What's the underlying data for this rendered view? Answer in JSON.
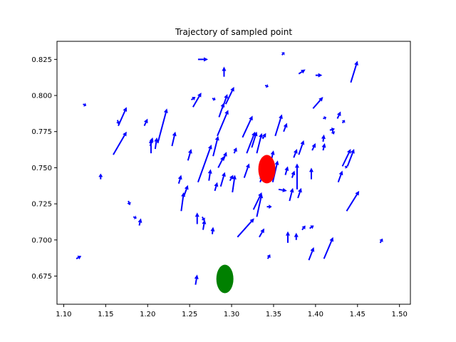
{
  "chart_data": {
    "type": "quiver",
    "title": "Trajectory of sampled point",
    "xlabel": "",
    "ylabel": "",
    "xlim": [
      1.092,
      1.513
    ],
    "ylim": [
      0.6555,
      0.8375
    ],
    "xticks": [
      "1.10",
      "1.15",
      "1.20",
      "1.25",
      "1.30",
      "1.35",
      "1.40",
      "1.45",
      "1.50"
    ],
    "xtick_values": [
      1.1,
      1.15,
      1.2,
      1.25,
      1.3,
      1.35,
      1.4,
      1.45,
      1.5
    ],
    "yticks": [
      "0.675",
      "0.700",
      "0.725",
      "0.750",
      "0.775",
      "0.800",
      "0.825"
    ],
    "ytick_values": [
      0.675,
      0.7,
      0.725,
      0.75,
      0.775,
      0.8,
      0.825
    ],
    "grid": false,
    "arrow_color": "#0000ff",
    "arrows": [
      {
        "x": 1.115,
        "y": 0.687,
        "dx": 0.006,
        "dy": 0.002
      },
      {
        "x": 1.123,
        "y": 0.794,
        "dx": 0.004,
        "dy": -0.001
      },
      {
        "x": 1.144,
        "y": 0.742,
        "dx": 0.0,
        "dy": 0.004
      },
      {
        "x": 1.159,
        "y": 0.759,
        "dx": 0.016,
        "dy": 0.016
      },
      {
        "x": 1.165,
        "y": 0.779,
        "dx": 0.01,
        "dy": 0.013
      },
      {
        "x": 1.164,
        "y": 0.783,
        "dx": 0.002,
        "dy": -0.003
      },
      {
        "x": 1.177,
        "y": 0.727,
        "dx": 0.002,
        "dy": -0.003
      },
      {
        "x": 1.183,
        "y": 0.716,
        "dx": 0.004,
        "dy": -0.001
      },
      {
        "x": 1.19,
        "y": 0.71,
        "dx": 0.002,
        "dy": 0.005
      },
      {
        "x": 1.196,
        "y": 0.779,
        "dx": 0.004,
        "dy": 0.005
      },
      {
        "x": 1.204,
        "y": 0.76,
        "dx": 0.0,
        "dy": 0.01
      },
      {
        "x": 1.203,
        "y": 0.765,
        "dx": 0.003,
        "dy": 0.006
      },
      {
        "x": 1.209,
        "y": 0.763,
        "dx": 0.002,
        "dy": 0.008
      },
      {
        "x": 1.212,
        "y": 0.767,
        "dx": 0.011,
        "dy": 0.024
      },
      {
        "x": 1.229,
        "y": 0.765,
        "dx": 0.004,
        "dy": 0.01
      },
      {
        "x": 1.237,
        "y": 0.739,
        "dx": 0.003,
        "dy": 0.006
      },
      {
        "x": 1.24,
        "y": 0.72,
        "dx": 0.003,
        "dy": 0.013
      },
      {
        "x": 1.243,
        "y": 0.73,
        "dx": 0.005,
        "dy": 0.008
      },
      {
        "x": 1.248,
        "y": 0.755,
        "dx": 0.004,
        "dy": 0.008
      },
      {
        "x": 1.252,
        "y": 0.797,
        "dx": 0.005,
        "dy": 0.002
      },
      {
        "x": 1.254,
        "y": 0.792,
        "dx": 0.01,
        "dy": 0.01
      },
      {
        "x": 1.257,
        "y": 0.669,
        "dx": 0.002,
        "dy": 0.007
      },
      {
        "x": 1.26,
        "y": 0.74,
        "dx": 0.016,
        "dy": 0.026
      },
      {
        "x": 1.259,
        "y": 0.711,
        "dx": 0.0,
        "dy": 0.008
      },
      {
        "x": 1.26,
        "y": 0.825,
        "dx": 0.012,
        "dy": 0.0
      },
      {
        "x": 1.265,
        "y": 0.716,
        "dx": 0.003,
        "dy": -0.003
      },
      {
        "x": 1.266,
        "y": 0.707,
        "dx": 0.002,
        "dy": 0.007
      },
      {
        "x": 1.273,
        "y": 0.741,
        "dx": 0.002,
        "dy": 0.008
      },
      {
        "x": 1.277,
        "y": 0.704,
        "dx": 0.001,
        "dy": 0.005
      },
      {
        "x": 1.28,
        "y": 0.734,
        "dx": 0.003,
        "dy": 0.006
      },
      {
        "x": 1.278,
        "y": 0.758,
        "dx": 0.006,
        "dy": 0.014
      },
      {
        "x": 1.277,
        "y": 0.798,
        "dx": 0.004,
        "dy": -0.001
      },
      {
        "x": 1.284,
        "y": 0.75,
        "dx": 0.007,
        "dy": 0.008
      },
      {
        "x": 1.283,
        "y": 0.772,
        "dx": 0.013,
        "dy": 0.018
      },
      {
        "x": 1.285,
        "y": 0.785,
        "dx": 0.006,
        "dy": 0.01
      },
      {
        "x": 1.287,
        "y": 0.737,
        "dx": 0.005,
        "dy": 0.01
      },
      {
        "x": 1.289,
        "y": 0.791,
        "dx": 0.006,
        "dy": 0.01
      },
      {
        "x": 1.291,
        "y": 0.813,
        "dx": 0.0,
        "dy": 0.007
      },
      {
        "x": 1.29,
        "y": 0.755,
        "dx": 0.004,
        "dy": 0.006
      },
      {
        "x": 1.293,
        "y": 0.794,
        "dx": 0.01,
        "dy": 0.012
      },
      {
        "x": 1.298,
        "y": 0.741,
        "dx": 0.004,
        "dy": 0.004
      },
      {
        "x": 1.301,
        "y": 0.733,
        "dx": 0.003,
        "dy": 0.012
      },
      {
        "x": 1.303,
        "y": 0.76,
        "dx": 0.003,
        "dy": 0.004
      },
      {
        "x": 1.307,
        "y": 0.702,
        "dx": 0.02,
        "dy": 0.013
      },
      {
        "x": 1.315,
        "y": 0.743,
        "dx": 0.006,
        "dy": 0.01
      },
      {
        "x": 1.313,
        "y": 0.771,
        "dx": 0.012,
        "dy": 0.015
      },
      {
        "x": 1.318,
        "y": 0.76,
        "dx": 0.01,
        "dy": 0.015
      },
      {
        "x": 1.324,
        "y": 0.764,
        "dx": 0.006,
        "dy": 0.011
      },
      {
        "x": 1.326,
        "y": 0.721,
        "dx": 0.01,
        "dy": 0.012
      },
      {
        "x": 1.33,
        "y": 0.716,
        "dx": 0.006,
        "dy": 0.016
      },
      {
        "x": 1.33,
        "y": 0.76,
        "dx": 0.006,
        "dy": 0.014
      },
      {
        "x": 1.333,
        "y": 0.702,
        "dx": 0.006,
        "dy": 0.006
      },
      {
        "x": 1.334,
        "y": 0.74,
        "dx": 0.003,
        "dy": 0.005
      },
      {
        "x": 1.337,
        "y": 0.77,
        "dx": 0.004,
        "dy": 0.004
      },
      {
        "x": 1.342,
        "y": 0.723,
        "dx": 0.006,
        "dy": 0.0
      },
      {
        "x": 1.34,
        "y": 0.807,
        "dx": 0.004,
        "dy": -0.001
      },
      {
        "x": 1.343,
        "y": 0.687,
        "dx": 0.003,
        "dy": 0.003
      },
      {
        "x": 1.346,
        "y": 0.752,
        "dx": 0.004,
        "dy": 0.01
      },
      {
        "x": 1.349,
        "y": 0.74,
        "dx": 0.006,
        "dy": 0.015
      },
      {
        "x": 1.352,
        "y": 0.772,
        "dx": 0.008,
        "dy": 0.015
      },
      {
        "x": 1.356,
        "y": 0.735,
        "dx": 0.01,
        "dy": -0.001
      },
      {
        "x": 1.36,
        "y": 0.828,
        "dx": 0.003,
        "dy": 0.002
      },
      {
        "x": 1.362,
        "y": 0.775,
        "dx": 0.004,
        "dy": 0.006
      },
      {
        "x": 1.364,
        "y": 0.745,
        "dx": 0.003,
        "dy": 0.006
      },
      {
        "x": 1.367,
        "y": 0.698,
        "dx": 0.0,
        "dy": 0.008
      },
      {
        "x": 1.369,
        "y": 0.727,
        "dx": 0.004,
        "dy": 0.009
      },
      {
        "x": 1.372,
        "y": 0.743,
        "dx": 0.003,
        "dy": 0.005
      },
      {
        "x": 1.374,
        "y": 0.757,
        "dx": 0.004,
        "dy": 0.006
      },
      {
        "x": 1.377,
        "y": 0.7,
        "dx": 0.0,
        "dy": 0.005
      },
      {
        "x": 1.378,
        "y": 0.735,
        "dx": 0.0,
        "dy": 0.018
      },
      {
        "x": 1.379,
        "y": 0.729,
        "dx": 0.004,
        "dy": 0.007
      },
      {
        "x": 1.38,
        "y": 0.759,
        "dx": 0.006,
        "dy": 0.01
      },
      {
        "x": 1.38,
        "y": 0.815,
        "dx": 0.008,
        "dy": 0.003
      },
      {
        "x": 1.384,
        "y": 0.707,
        "dx": 0.004,
        "dy": 0.003
      },
      {
        "x": 1.392,
        "y": 0.686,
        "dx": 0.006,
        "dy": 0.009
      },
      {
        "x": 1.393,
        "y": 0.708,
        "dx": 0.005,
        "dy": 0.002
      },
      {
        "x": 1.395,
        "y": 0.742,
        "dx": 0.0,
        "dy": 0.008
      },
      {
        "x": 1.396,
        "y": 0.762,
        "dx": 0.004,
        "dy": 0.005
      },
      {
        "x": 1.397,
        "y": 0.791,
        "dx": 0.012,
        "dy": 0.008
      },
      {
        "x": 1.4,
        "y": 0.814,
        "dx": 0.008,
        "dy": 0.0
      },
      {
        "x": 1.409,
        "y": 0.784,
        "dx": 0.004,
        "dy": 0.001
      },
      {
        "x": 1.409,
        "y": 0.762,
        "dx": 0.002,
        "dy": 0.005
      },
      {
        "x": 1.409,
        "y": 0.768,
        "dx": 0.001,
        "dy": 0.005
      },
      {
        "x": 1.41,
        "y": 0.687,
        "dx": 0.011,
        "dy": 0.015
      },
      {
        "x": 1.417,
        "y": 0.776,
        "dx": 0.006,
        "dy": 0.001
      },
      {
        "x": 1.42,
        "y": 0.776,
        "dx": 0.002,
        "dy": -0.003
      },
      {
        "x": 1.426,
        "y": 0.784,
        "dx": 0.004,
        "dy": 0.005
      },
      {
        "x": 1.427,
        "y": 0.74,
        "dx": 0.005,
        "dy": 0.008
      },
      {
        "x": 1.432,
        "y": 0.781,
        "dx": 0.003,
        "dy": 0.002
      },
      {
        "x": 1.432,
        "y": 0.751,
        "dx": 0.01,
        "dy": 0.012
      },
      {
        "x": 1.435,
        "y": 0.751,
        "dx": 0.003,
        "dy": -0.001
      },
      {
        "x": 1.437,
        "y": 0.72,
        "dx": 0.015,
        "dy": 0.014
      },
      {
        "x": 1.438,
        "y": 0.751,
        "dx": 0.008,
        "dy": 0.012
      },
      {
        "x": 1.442,
        "y": 0.809,
        "dx": 0.008,
        "dy": 0.015
      },
      {
        "x": 1.477,
        "y": 0.698,
        "dx": 0.003,
        "dy": 0.003
      }
    ],
    "markers": [
      {
        "x": 1.342,
        "y": 0.749,
        "color": "#ff0000",
        "rx_data": 0.0105,
        "ry_data": 0.0105
      },
      {
        "x": 1.292,
        "y": 0.673,
        "color": "#008000",
        "rx_data": 0.0105,
        "ry_data": 0.0105
      }
    ]
  }
}
